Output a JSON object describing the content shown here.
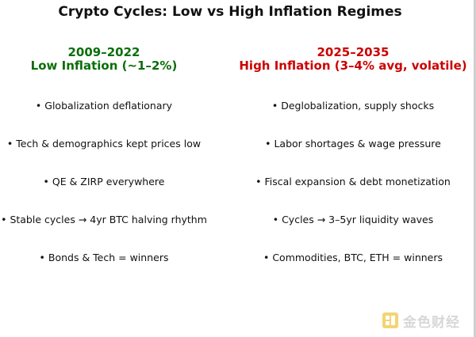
{
  "title": "Crypto Cycles: Low vs High Inflation Regimes",
  "left_column": {
    "years": "2009–2022",
    "regime": "Low Inflation (~1–2%)",
    "color": "#0a6e0a",
    "bullets": [
      "• Globalization deflationary",
      "• Tech & demographics kept prices low",
      "• QE & ZIRP everywhere",
      "• Stable cycles → 4yr BTC halving rhythm",
      "• Bonds & Tech = winners"
    ]
  },
  "right_column": {
    "years": "2025–2035",
    "regime": "High Inflation (3–4% avg, volatile)",
    "color": "#cc0000",
    "bullets": [
      "• Deglobalization, supply shocks",
      "• Labor shortages & wage pressure",
      "• Fiscal expansion & debt monetization",
      "• Cycles → 3–5yr liquidity waves",
      "• Commodities, BTC, ETH = winners"
    ]
  },
  "watermark": {
    "text": "金色财经",
    "icon": "jinse-logo-icon",
    "color": "#e8b400"
  }
}
